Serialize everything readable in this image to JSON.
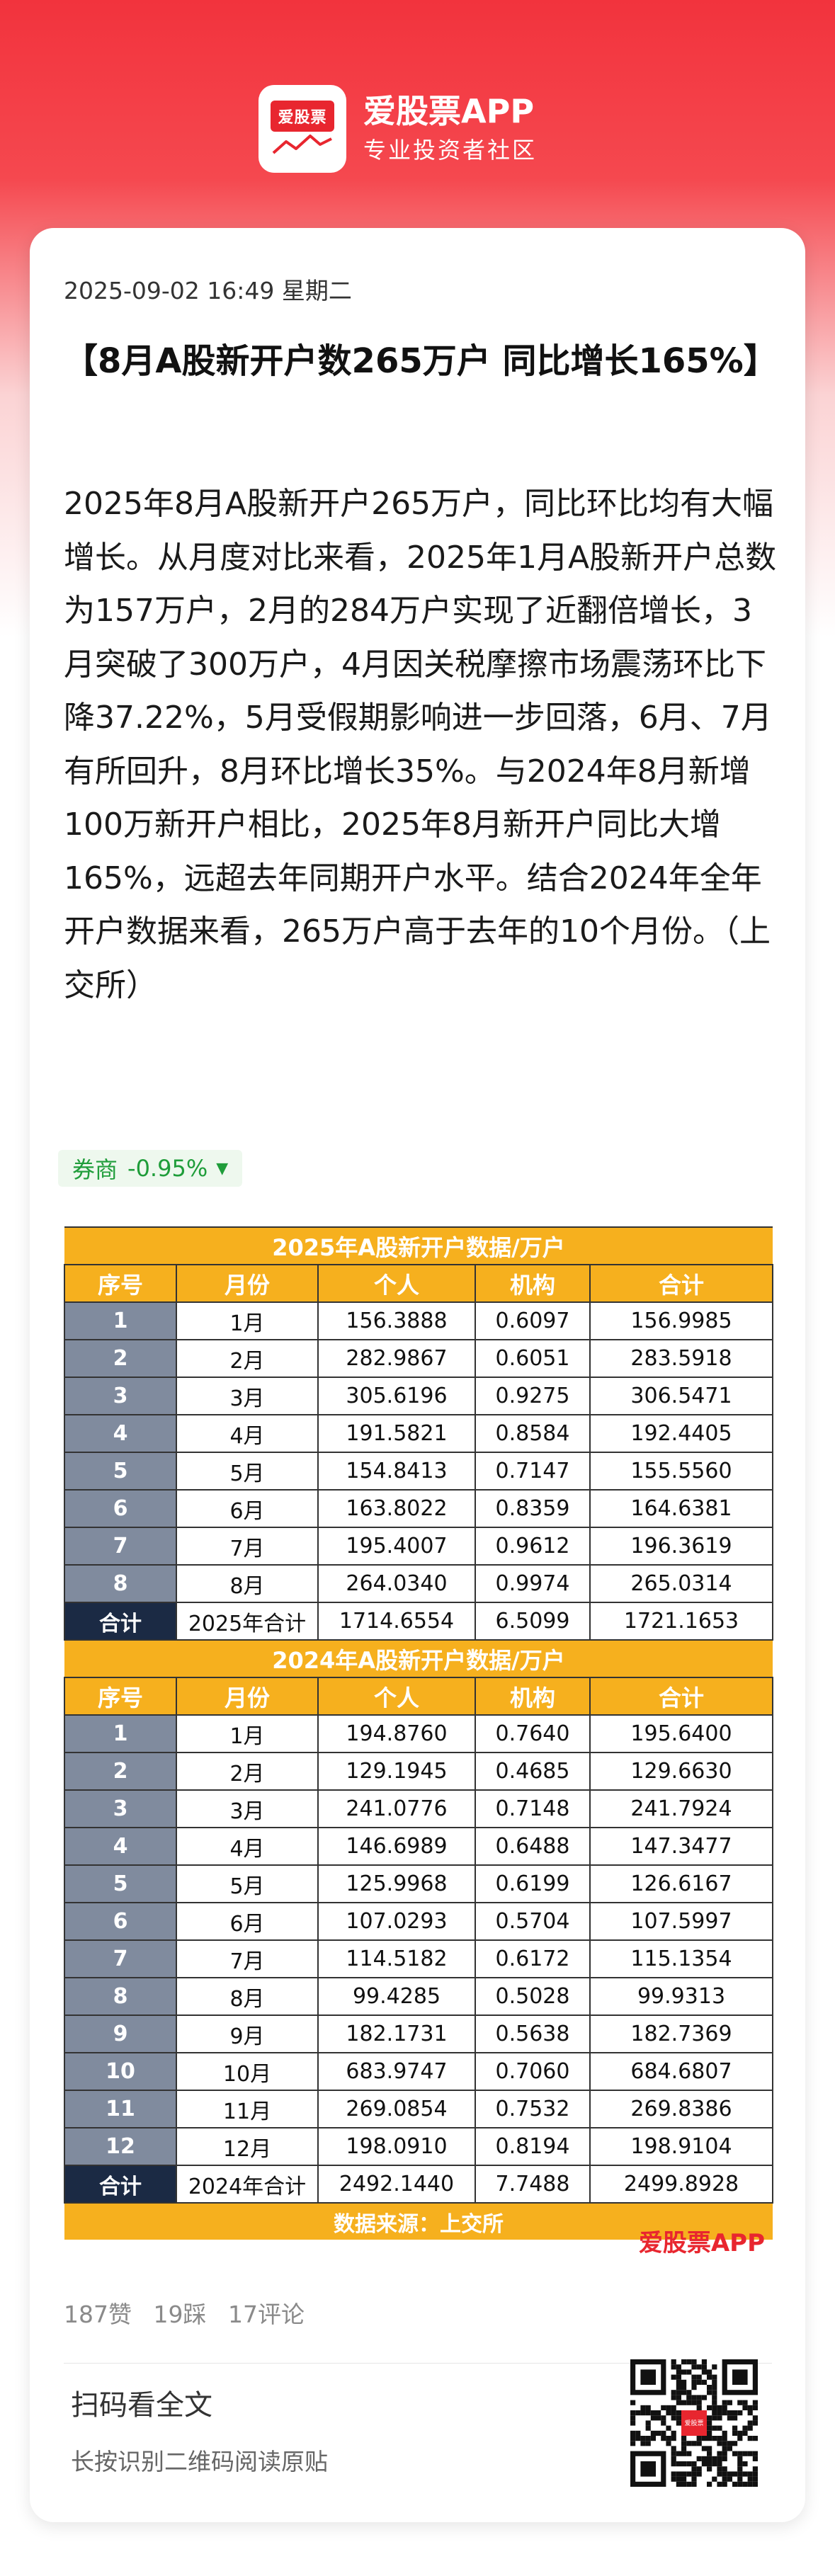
{
  "header": {
    "logo_text": "爱股票",
    "app_name": "爱股票APP",
    "slogan": "专业投资者社区"
  },
  "article": {
    "date": "2025-09-02 16:49 星期二",
    "title": "【8月A股新开户数265万户 同比增长165%】",
    "body": "2025年8月A股新开户265万户，同比环比均有大幅增长。从月度对比来看，2025年1月A股新开户总数为157万户，2月的284万户实现了近翻倍增长，3月突破了300万户，4月因关税摩擦市场震荡环比下降37.22%，5月受假期影响进一步回落，6月、7月有所回升，8月环比增长35%。与2024年8月新增100万新开户相比，2025年8月新开户同比大增165%，远超去年同期开户水平。结合2024年全年开户数据来看，265万户高于去年的10个月份。（上交所）"
  },
  "stock_tag": {
    "name": "券商",
    "change": "-0.95%",
    "arrow": "▼",
    "color": "#1f9d3a"
  },
  "tables": {
    "headers": [
      "序号",
      "月份",
      "个人",
      "机构",
      "合计"
    ],
    "t2025": {
      "title": "2025年A股新开户数据/万户",
      "rows": [
        [
          "1",
          "1月",
          "156.3888",
          "0.6097",
          "156.9985"
        ],
        [
          "2",
          "2月",
          "282.9867",
          "0.6051",
          "283.5918"
        ],
        [
          "3",
          "3月",
          "305.6196",
          "0.9275",
          "306.5471"
        ],
        [
          "4",
          "4月",
          "191.5821",
          "0.8584",
          "192.4405"
        ],
        [
          "5",
          "5月",
          "154.8413",
          "0.7147",
          "155.5560"
        ],
        [
          "6",
          "6月",
          "163.8022",
          "0.8359",
          "164.6381"
        ],
        [
          "7",
          "7月",
          "195.4007",
          "0.9612",
          "196.3619"
        ],
        [
          "8",
          "8月",
          "264.0340",
          "0.9974",
          "265.0314"
        ]
      ],
      "total": [
        "合计",
        "2025年合计",
        "1714.6554",
        "6.5099",
        "1721.1653"
      ]
    },
    "t2024": {
      "title": "2024年A股新开户数据/万户",
      "rows": [
        [
          "1",
          "1月",
          "194.8760",
          "0.7640",
          "195.6400"
        ],
        [
          "2",
          "2月",
          "129.1945",
          "0.4685",
          "129.6630"
        ],
        [
          "3",
          "3月",
          "241.0776",
          "0.7148",
          "241.7924"
        ],
        [
          "4",
          "4月",
          "146.6989",
          "0.6488",
          "147.3477"
        ],
        [
          "5",
          "5月",
          "125.9968",
          "0.6199",
          "126.6167"
        ],
        [
          "6",
          "6月",
          "107.0293",
          "0.5704",
          "107.5997"
        ],
        [
          "7",
          "7月",
          "114.5182",
          "0.6172",
          "115.1354"
        ],
        [
          "8",
          "8月",
          "99.4285",
          "0.5028",
          "99.9313"
        ],
        [
          "9",
          "9月",
          "182.1731",
          "0.5638",
          "182.7369"
        ],
        [
          "10",
          "10月",
          "683.9747",
          "0.7060",
          "684.6807"
        ],
        [
          "11",
          "11月",
          "269.0854",
          "0.7532",
          "269.8386"
        ],
        [
          "12",
          "12月",
          "198.0910",
          "0.8194",
          "198.9104"
        ]
      ],
      "total": [
        "合计",
        "2024年合计",
        "2492.1440",
        "7.7488",
        "2499.8928"
      ]
    },
    "source": "数据来源：上交所",
    "watermark": "爱股票APP"
  },
  "stats": {
    "likes": "187赞",
    "dislikes": "19踩",
    "comments": "17评论"
  },
  "footer": {
    "scan_title": "扫码看全文",
    "scan_sub": "长按识别二维码阅读原贴",
    "qr_label": "爱股票"
  }
}
